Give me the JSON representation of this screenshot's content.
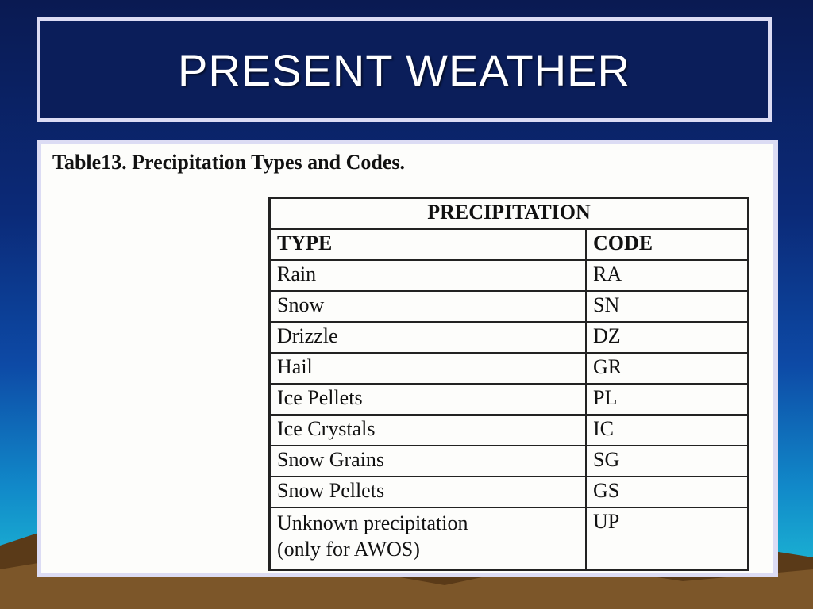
{
  "slide": {
    "title": "PRESENT WEATHER",
    "caption": "Table13. Precipitation Types and Codes."
  },
  "table": {
    "group_header": "PRECIPITATION",
    "columns": [
      "TYPE",
      "CODE"
    ],
    "rows": [
      {
        "type": "Rain",
        "code": "RA"
      },
      {
        "type": "Snow",
        "code": "SN"
      },
      {
        "type": "Drizzle",
        "code": "DZ"
      },
      {
        "type": "Hail",
        "code": "GR"
      },
      {
        "type": "Ice Pellets",
        "code": "PL"
      },
      {
        "type": "Ice Crystals",
        "code": "IC"
      },
      {
        "type": "Snow Grains",
        "code": "SG"
      },
      {
        "type": "Snow Pellets",
        "code": "GS"
      },
      {
        "type": "Unknown precipitation",
        "type_line2": "(only for AWOS)",
        "code": "UP"
      }
    ]
  },
  "colors": {
    "frame": "#dcdcf4",
    "title_bg": "#0b1e5a",
    "ground_dark": "#5a3a18",
    "ground_light": "#8a6230"
  }
}
